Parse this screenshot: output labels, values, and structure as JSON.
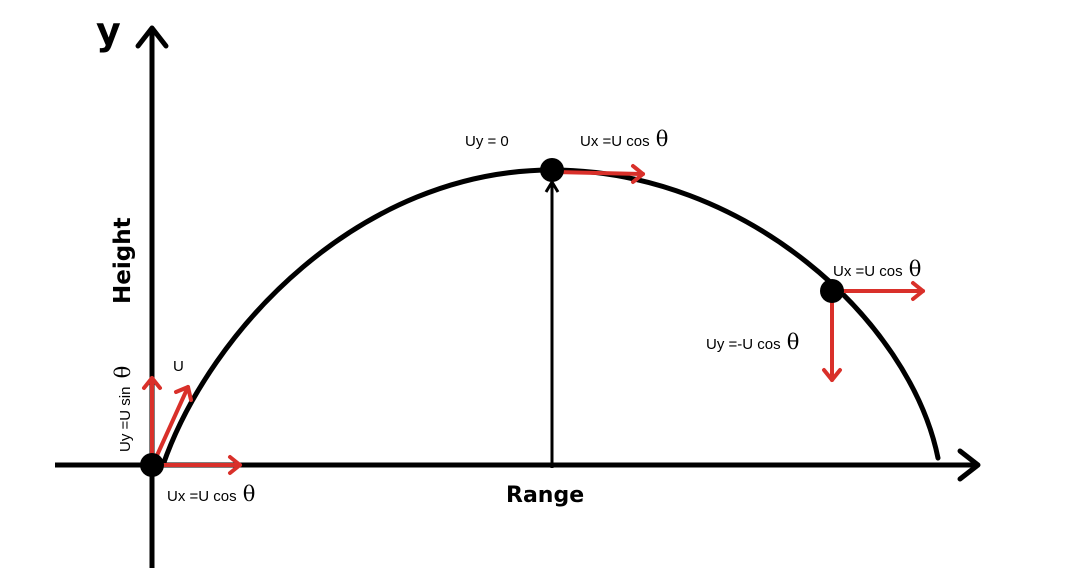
{
  "axes": {
    "y_label": "y",
    "vertical_label": "Height",
    "horizontal_label": "Range"
  },
  "labels": {
    "launch_velocity": "U",
    "launch_vertical_component": "Uy =U sin",
    "launch_horizontal_component": "Ux =U cos",
    "peak_vertical_component": "Uy = 0",
    "peak_horizontal_component": "Ux =U cos",
    "descent_horizontal_component": "Ux =U cos",
    "descent_vertical_component": "Uy =-U cos",
    "theta_symbol": "θ"
  },
  "colors": {
    "curve": "#000000",
    "component_arrows": "#d9302a",
    "points": "#000000"
  }
}
